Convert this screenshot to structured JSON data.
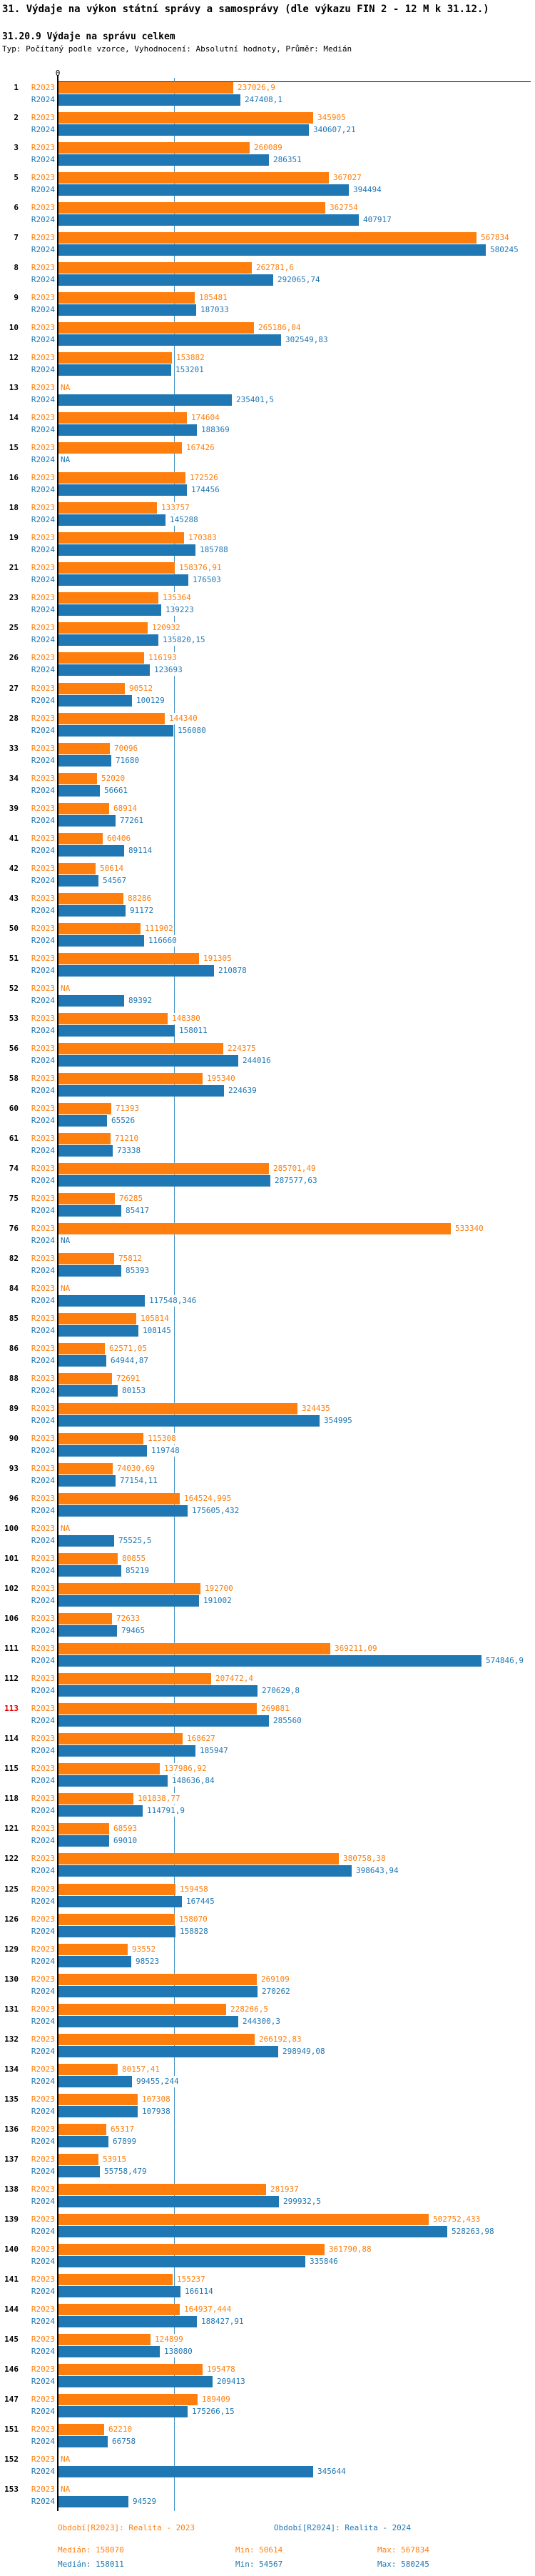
{
  "title": "31. Výdaje na výkon státní správy a samosprávy (dle výkazu FIN 2 - 12 M k 31.12.)",
  "subtitle": "31.20.9 Výdaje na správu celkem",
  "meta": "Typ: Počítaný podle vzorce, Vyhodnocení: Absolutní hodnoty, Průměr: Medián",
  "axis": {
    "zero_label": "0"
  },
  "colors": {
    "r2023": "#ff7f0e",
    "r2024": "#1f77b4",
    "median_line": "#4393c3",
    "highlight": "#e10000",
    "axis": "#000000"
  },
  "legend": {
    "r2023": "Období[R2023]: Realita - 2023",
    "r2024": "Období[R2024]: Realita - 2024"
  },
  "stats": {
    "r2023": {
      "median": "Medián: 158070",
      "min": "Min: 50614",
      "max": "Max: 567834"
    },
    "r2024": {
      "median": "Medián: 158011",
      "min": "Min: 54567",
      "max": "Max: 580245"
    }
  },
  "chart_data": {
    "type": "bar",
    "orientation": "horizontal",
    "na_label": "NA",
    "median_line_value": 158011,
    "xlim": [
      0,
      645000
    ],
    "highlighted_categories": [
      "113"
    ],
    "categories": [
      "1",
      "2",
      "3",
      "5",
      "6",
      "7",
      "8",
      "9",
      "10",
      "12",
      "13",
      "14",
      "15",
      "16",
      "18",
      "19",
      "21",
      "23",
      "25",
      "26",
      "27",
      "28",
      "33",
      "34",
      "39",
      "41",
      "42",
      "43",
      "50",
      "51",
      "52",
      "53",
      "56",
      "58",
      "60",
      "61",
      "74",
      "75",
      "76",
      "82",
      "84",
      "85",
      "86",
      "88",
      "89",
      "90",
      "93",
      "96",
      "100",
      "101",
      "102",
      "106",
      "111",
      "112",
      "113",
      "114",
      "115",
      "118",
      "121",
      "122",
      "125",
      "126",
      "129",
      "130",
      "131",
      "132",
      "134",
      "135",
      "136",
      "137",
      "138",
      "139",
      "140",
      "141",
      "144",
      "145",
      "146",
      "147",
      "151",
      "152",
      "153"
    ],
    "series": [
      {
        "name": "R2023",
        "values": [
          237026.9,
          345905,
          260089,
          367027,
          362754,
          567834,
          262781.6,
          185481,
          265186.04,
          153882,
          null,
          174604,
          167426,
          172526,
          133757,
          170383,
          158376.91,
          135364,
          120932,
          116193,
          90512,
          144340,
          70096,
          52020,
          68914,
          60406,
          50614,
          88286,
          111902,
          191305,
          null,
          148380,
          224375,
          195340,
          71393,
          71210,
          285701.49,
          76285,
          533340,
          75812,
          null,
          105814,
          62571.05,
          72691,
          324435,
          115308,
          74030.69,
          164524.995,
          null,
          80855,
          192700,
          72633,
          369211.09,
          207472.4,
          269881,
          168627,
          137986.92,
          101838.77,
          68593,
          380758.38,
          159458,
          158070,
          93552,
          269109,
          228266.5,
          266192.83,
          80157.41,
          107308,
          65317,
          53915,
          281937,
          502752.433,
          361790.88,
          155237,
          164937.444,
          124899,
          195478,
          189409,
          62210,
          null,
          null
        ]
      },
      {
        "name": "R2024",
        "values": [
          247408.1,
          340607.21,
          286351,
          394494,
          407917,
          580245,
          292065.74,
          187033,
          302549.83,
          153201,
          235401.5,
          188369,
          null,
          174456,
          145288,
          185788,
          176503,
          139223,
          135820.15,
          123693,
          100129,
          156080,
          71680,
          56661,
          77261,
          89114,
          54567,
          91172,
          116660,
          210878,
          89392,
          158011,
          244016,
          224639,
          65526,
          73338,
          287577.63,
          85417,
          null,
          85393,
          117548.346,
          108145,
          64944.87,
          80153,
          354995,
          119748,
          77154.11,
          175605.432,
          75525.5,
          85219,
          191002,
          79465,
          574846.9,
          270629.8,
          285560,
          185947,
          148636.84,
          114791.9,
          69010,
          398643.94,
          167445,
          158828,
          98523,
          270262,
          244300.3,
          298949.08,
          99455.244,
          107938,
          67899,
          55758.479,
          299932.5,
          528263.98,
          335846,
          166114,
          188427.91,
          138080,
          209413,
          175266.15,
          66758,
          345644,
          94529
        ]
      }
    ]
  }
}
